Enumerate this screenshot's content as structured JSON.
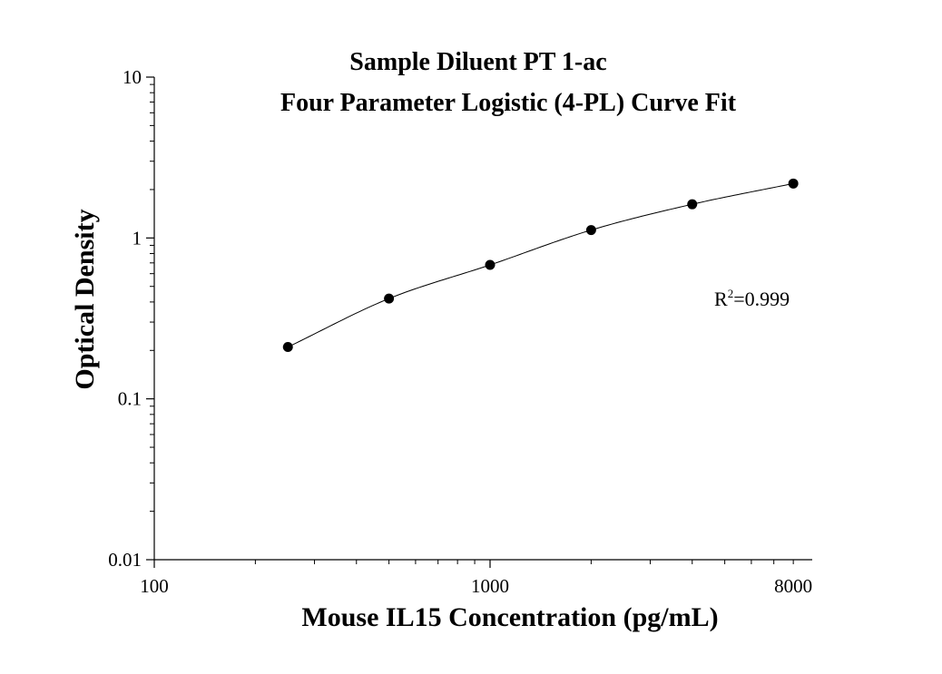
{
  "chart_data": {
    "type": "scatter",
    "title": "Sample Diluent PT 1-ac",
    "subtitle": "Four Parameter Logistic (4-PL) Curve Fit",
    "xlabel": "Mouse IL15 Concentration (pg/mL)",
    "ylabel": "Optical Density",
    "x_scale": "log",
    "y_scale": "log",
    "xlim": [
      100,
      9000
    ],
    "ylim": [
      0.01,
      10
    ],
    "x_ticks": [
      {
        "value": 100,
        "label": "100"
      },
      {
        "value": 1000,
        "label": "1000"
      },
      {
        "value": 8000,
        "label": "8000"
      }
    ],
    "y_ticks": [
      {
        "value": 0.01,
        "label": "0.01"
      },
      {
        "value": 0.1,
        "label": "0.1"
      },
      {
        "value": 1,
        "label": "1"
      },
      {
        "value": 10,
        "label": "10"
      }
    ],
    "grid": false,
    "points": [
      {
        "x": 250,
        "y": 0.21
      },
      {
        "x": 500,
        "y": 0.42
      },
      {
        "x": 1000,
        "y": 0.68
      },
      {
        "x": 2000,
        "y": 1.12
      },
      {
        "x": 4000,
        "y": 1.62
      },
      {
        "x": 8000,
        "y": 2.18
      }
    ],
    "fit": {
      "model": "4-PL"
    },
    "annotation": {
      "base": "R",
      "sup": "2",
      "text": "=0.999"
    }
  }
}
